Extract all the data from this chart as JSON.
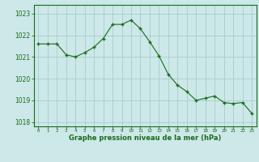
{
  "x": [
    0,
    1,
    2,
    3,
    4,
    5,
    6,
    7,
    8,
    9,
    10,
    11,
    12,
    13,
    14,
    15,
    16,
    17,
    18,
    19,
    20,
    21,
    22,
    23
  ],
  "y": [
    1021.6,
    1021.6,
    1021.6,
    1021.1,
    1021.0,
    1021.2,
    1021.45,
    1021.85,
    1022.5,
    1022.5,
    1022.7,
    1022.3,
    1021.7,
    1021.05,
    1020.2,
    1019.7,
    1019.4,
    1019.0,
    1019.1,
    1019.2,
    1018.9,
    1018.85,
    1018.9,
    1018.4
  ],
  "line_color": "#1a6b1a",
  "marker_color": "#1a6b1a",
  "bg_color": "#cce8e8",
  "grid_color": "#aacccc",
  "xlabel": "Graphe pression niveau de la mer (hPa)",
  "xlabel_color": "#1a6b1a",
  "tick_color": "#1a6b1a",
  "ylim": [
    1017.8,
    1023.4
  ],
  "yticks": [
    1018,
    1019,
    1020,
    1021,
    1022,
    1023
  ],
  "xticks": [
    0,
    1,
    2,
    3,
    4,
    5,
    6,
    7,
    8,
    9,
    10,
    11,
    12,
    13,
    14,
    15,
    16,
    17,
    18,
    19,
    20,
    21,
    22,
    23
  ],
  "border_color": "#1a6b1a"
}
